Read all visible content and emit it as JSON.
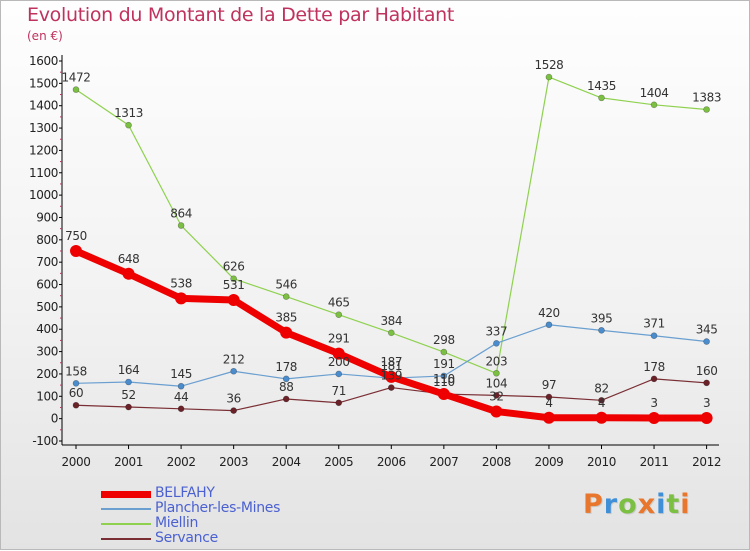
{
  "title": "Evolution du Montant de la Dette par Habitant",
  "subtitle": "(en €)",
  "logo": {
    "text": "Proxiti",
    "letters": [
      {
        "ch": "P",
        "color": "#e8762c"
      },
      {
        "ch": "r",
        "color": "#3f8fd8"
      },
      {
        "ch": "o",
        "color": "#7cc043"
      },
      {
        "ch": "x",
        "color": "#e8762c"
      },
      {
        "ch": "i",
        "color": "#3f8fd8"
      },
      {
        "ch": "t",
        "color": "#7cc043"
      },
      {
        "ch": "i",
        "color": "#e8762c"
      }
    ]
  },
  "chart_data": {
    "type": "line",
    "categories": [
      "2000",
      "2001",
      "2002",
      "2003",
      "2004",
      "2005",
      "2006",
      "2007",
      "2008",
      "2009",
      "2010",
      "2011",
      "2012"
    ],
    "yticks": [
      "-100",
      "0",
      "100",
      "200",
      "300",
      "400",
      "500",
      "600",
      "700",
      "800",
      "900",
      "1000",
      "1100",
      "1200",
      "1300",
      "1400",
      "1500",
      "1600"
    ],
    "ylim": [
      -100,
      1600
    ],
    "grid": false,
    "legend_position": "bottom-left",
    "series": [
      {
        "name": "Miellin",
        "color": "#8fd14f",
        "marker": "#7cc043",
        "width": 1.2,
        "values": [
          1472,
          1313,
          864,
          626,
          546,
          465,
          384,
          298,
          203,
          1528,
          1435,
          1404,
          1383
        ],
        "labels": [
          "1472",
          "1313",
          "864",
          "626",
          "546",
          "465",
          "384",
          "298",
          "203",
          "1528",
          "1435",
          "1404",
          "1383"
        ]
      },
      {
        "name": "Plancher-les-Mines",
        "color": "#6a9fd0",
        "marker": "#4a8ccc",
        "width": 1.2,
        "values": [
          158,
          164,
          145,
          212,
          178,
          200,
          181,
          191,
          337,
          420,
          395,
          371,
          345
        ],
        "labels": [
          "158",
          "164",
          "145",
          "212",
          "178",
          "200",
          "181",
          "191",
          "337",
          "420",
          "395",
          "371",
          "345"
        ]
      },
      {
        "name": "Servance",
        "color": "#7a2f35",
        "marker": "#6a2228",
        "width": 1.2,
        "values": [
          60,
          52,
          44,
          36,
          88,
          71,
          139,
          110,
          104,
          97,
          82,
          178,
          160
        ],
        "labels": [
          "60",
          "52",
          "44",
          "36",
          "88",
          "71",
          "139",
          "110",
          "104",
          "97",
          "82",
          "178",
          "160"
        ]
      },
      {
        "name": "BELFAHY",
        "color": "#ee0000",
        "marker": "#ee0000",
        "width": 7,
        "values": [
          750,
          648,
          538,
          531,
          385,
          291,
          187,
          110,
          32,
          4,
          4,
          3,
          3
        ],
        "labels": [
          "750",
          "648",
          "538",
          "531",
          "385",
          "291",
          "187",
          "110",
          "32",
          "4",
          "4",
          "3",
          "3"
        ]
      }
    ],
    "legend": [
      "BELFAHY",
      "Plancher-les-Mines",
      "Miellin",
      "Servance"
    ]
  }
}
